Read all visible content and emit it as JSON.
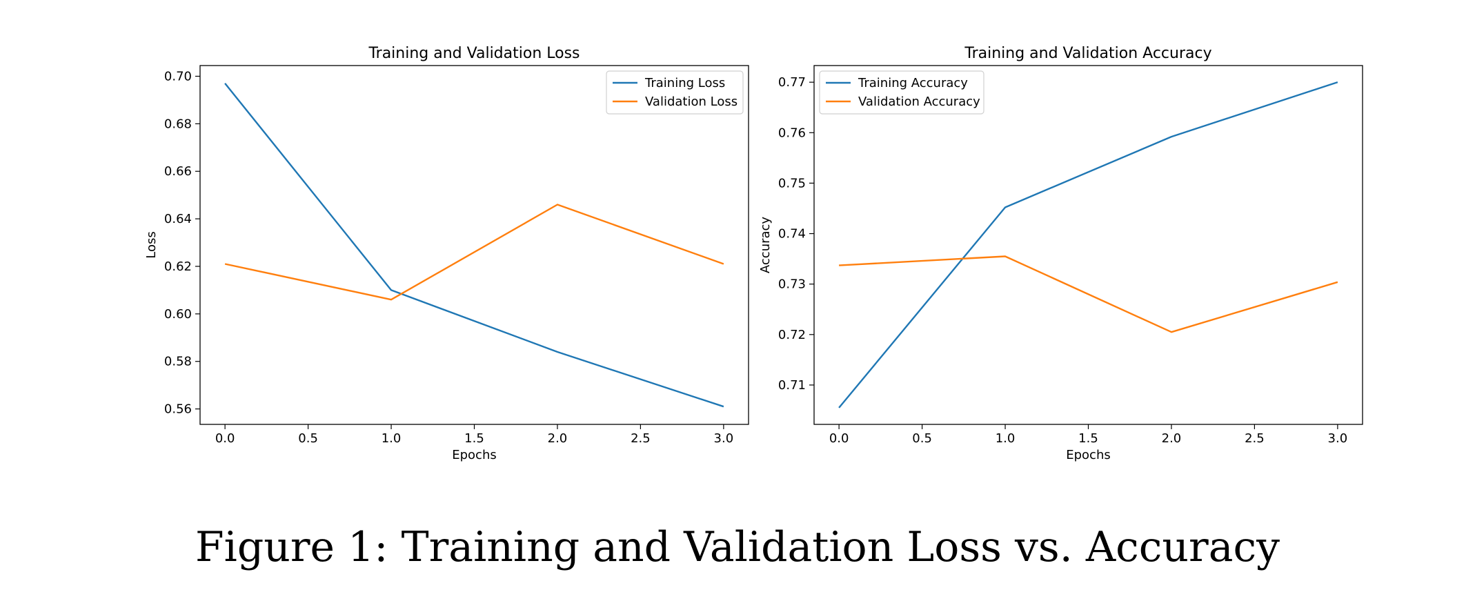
{
  "caption": "Figure 1: Training and Validation Loss vs. Accuracy",
  "chart_data": [
    {
      "type": "line",
      "title": "Training and Validation Loss",
      "xlabel": "Epochs",
      "ylabel": "Loss",
      "xlim": [
        -0.15,
        3.15
      ],
      "ylim": [
        0.5535,
        0.7045
      ],
      "xticks": [
        0.0,
        0.5,
        1.0,
        1.5,
        2.0,
        2.5,
        3.0
      ],
      "xtick_labels": [
        "0.0",
        "0.5",
        "1.0",
        "1.5",
        "2.0",
        "2.5",
        "3.0"
      ],
      "yticks": [
        0.56,
        0.58,
        0.6,
        0.62,
        0.64,
        0.66,
        0.68,
        0.7
      ],
      "ytick_labels": [
        "0.56",
        "0.58",
        "0.60",
        "0.62",
        "0.64",
        "0.66",
        "0.68",
        "0.70"
      ],
      "grid": false,
      "legend_position": "top-right",
      "x": [
        0,
        1,
        2,
        3
      ],
      "series": [
        {
          "name": "Training Loss",
          "color": "#1f77b4",
          "values": [
            0.697,
            0.61,
            0.584,
            0.561
          ]
        },
        {
          "name": "Validation Loss",
          "color": "#ff7f0e",
          "values": [
            0.621,
            0.606,
            0.646,
            0.621
          ]
        }
      ]
    },
    {
      "type": "line",
      "title": "Training and Validation Accuracy",
      "xlabel": "Epochs",
      "ylabel": "Accuracy",
      "xlim": [
        -0.15,
        3.15
      ],
      "ylim": [
        0.7022,
        0.7733
      ],
      "xticks": [
        0.0,
        0.5,
        1.0,
        1.5,
        2.0,
        2.5,
        3.0
      ],
      "xtick_labels": [
        "0.0",
        "0.5",
        "1.0",
        "1.5",
        "2.0",
        "2.5",
        "3.0"
      ],
      "yticks": [
        0.71,
        0.72,
        0.73,
        0.74,
        0.75,
        0.76,
        0.77
      ],
      "ytick_labels": [
        "0.71",
        "0.72",
        "0.73",
        "0.74",
        "0.75",
        "0.76",
        "0.77"
      ],
      "grid": false,
      "legend_position": "top-left",
      "x": [
        0,
        1,
        2,
        3
      ],
      "series": [
        {
          "name": "Training Accuracy",
          "color": "#1f77b4",
          "values": [
            0.7055,
            0.7452,
            0.7592,
            0.77
          ]
        },
        {
          "name": "Validation Accuracy",
          "color": "#ff7f0e",
          "values": [
            0.7337,
            0.7355,
            0.7205,
            0.7304
          ]
        }
      ]
    }
  ]
}
